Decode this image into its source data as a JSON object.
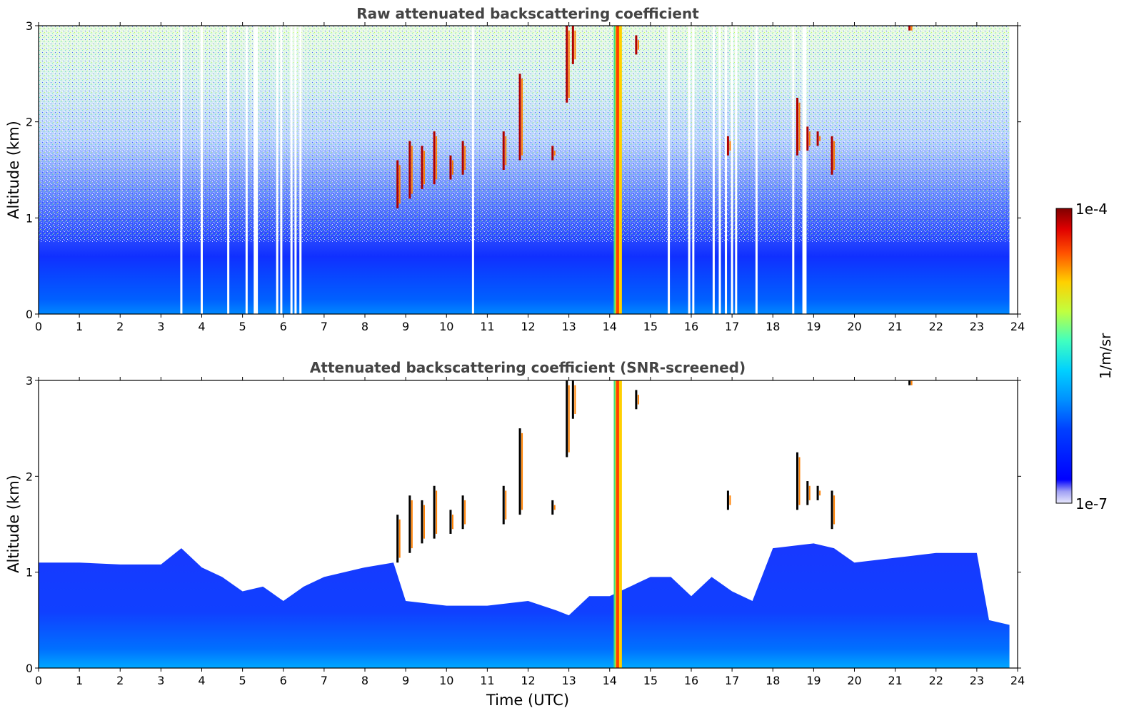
{
  "chart_data": [
    {
      "type": "heatmap",
      "title": "Raw attenuated backscattering coefficient",
      "xlabel": "",
      "ylabel": "Altitude (km)",
      "xlim": [
        0,
        24
      ],
      "ylim": [
        0,
        3
      ],
      "xticks": [
        "0",
        "1",
        "2",
        "3",
        "4",
        "5",
        "6",
        "7",
        "8",
        "9",
        "10",
        "11",
        "12",
        "13",
        "14",
        "15",
        "16",
        "17",
        "18",
        "19",
        "20",
        "21",
        "22",
        "23",
        "24"
      ],
      "yticks": [
        "0",
        "1",
        "2",
        "3"
      ],
      "features": {
        "clear_gaps_utc": [
          3.5,
          4.0,
          4.65,
          5.1,
          5.3,
          5.35,
          5.85,
          5.95,
          6.2,
          6.3,
          6.42,
          10.65,
          15.45,
          15.95,
          16.05,
          16.55,
          16.7,
          16.85,
          17.0,
          17.1,
          17.6,
          18.5,
          18.75,
          18.8
        ],
        "precip_column_utc": [
          14.1,
          14.3
        ],
        "strong_echo_streaks": [
          {
            "t": 8.8,
            "z": [
              1.1,
              1.6
            ]
          },
          {
            "t": 9.1,
            "z": [
              1.2,
              1.8
            ]
          },
          {
            "t": 9.4,
            "z": [
              1.3,
              1.75
            ]
          },
          {
            "t": 9.7,
            "z": [
              1.35,
              1.9
            ]
          },
          {
            "t": 10.1,
            "z": [
              1.4,
              1.65
            ]
          },
          {
            "t": 10.4,
            "z": [
              1.45,
              1.8
            ]
          },
          {
            "t": 11.4,
            "z": [
              1.5,
              1.9
            ]
          },
          {
            "t": 11.8,
            "z": [
              1.6,
              2.5
            ]
          },
          {
            "t": 12.6,
            "z": [
              1.6,
              1.75
            ]
          },
          {
            "t": 12.95,
            "z": [
              2.2,
              3.0
            ]
          },
          {
            "t": 13.1,
            "z": [
              2.6,
              3.0
            ]
          },
          {
            "t": 14.65,
            "z": [
              2.7,
              2.9
            ]
          },
          {
            "t": 16.9,
            "z": [
              1.65,
              1.85
            ]
          },
          {
            "t": 18.6,
            "z": [
              1.65,
              2.25
            ]
          },
          {
            "t": 18.85,
            "z": [
              1.7,
              1.95
            ]
          },
          {
            "t": 19.1,
            "z": [
              1.75,
              1.9
            ]
          },
          {
            "t": 19.45,
            "z": [
              1.45,
              1.85
            ]
          },
          {
            "t": 21.35,
            "z": [
              2.95,
              3.0
            ]
          }
        ]
      }
    },
    {
      "type": "heatmap",
      "title": "Attenuated backscattering coefficient (SNR-screened)",
      "xlabel": "Time (UTC)",
      "ylabel": "Altitude (km)",
      "xlim": [
        0,
        24
      ],
      "ylim": [
        0,
        3
      ],
      "xticks": [
        "0",
        "1",
        "2",
        "3",
        "4",
        "5",
        "6",
        "7",
        "8",
        "9",
        "10",
        "11",
        "12",
        "13",
        "14",
        "15",
        "16",
        "17",
        "18",
        "19",
        "20",
        "21",
        "22",
        "23",
        "24"
      ],
      "yticks": [
        "0",
        "1",
        "2",
        "3"
      ],
      "features": {
        "boundary_layer_top_km": [
          [
            0,
            1.1
          ],
          [
            1,
            1.1
          ],
          [
            2,
            1.08
          ],
          [
            3,
            1.08
          ],
          [
            3.5,
            1.25
          ],
          [
            4,
            1.05
          ],
          [
            4.5,
            0.95
          ],
          [
            5,
            0.8
          ],
          [
            5.5,
            0.85
          ],
          [
            6,
            0.7
          ],
          [
            6.5,
            0.85
          ],
          [
            7,
            0.95
          ],
          [
            8,
            1.05
          ],
          [
            8.7,
            1.1
          ],
          [
            9,
            0.7
          ],
          [
            10,
            0.65
          ],
          [
            11,
            0.65
          ],
          [
            12,
            0.7
          ],
          [
            12.7,
            0.6
          ],
          [
            13,
            0.55
          ],
          [
            13.5,
            0.75
          ],
          [
            14,
            0.75
          ],
          [
            14.5,
            0.85
          ],
          [
            15,
            0.95
          ],
          [
            15.5,
            0.95
          ],
          [
            16,
            0.75
          ],
          [
            16.5,
            0.95
          ],
          [
            17,
            0.8
          ],
          [
            17.5,
            0.7
          ],
          [
            18,
            1.25
          ],
          [
            19,
            1.3
          ],
          [
            19.5,
            1.25
          ],
          [
            20,
            1.1
          ],
          [
            21,
            1.15
          ],
          [
            22,
            1.2
          ],
          [
            23,
            1.2
          ],
          [
            23.3,
            0.5
          ],
          [
            23.8,
            0.45
          ]
        ],
        "precip_column_utc": [
          14.1,
          14.3
        ]
      }
    }
  ],
  "colorbar": {
    "label": "1/m/sr",
    "max_label": "1e-4",
    "min_label": "1e-7",
    "scale": "log",
    "colormap": "jet",
    "colors": [
      "#e8e8fc",
      "#c8c8f8",
      "#a0a0f4",
      "#0000ff",
      "#0060ff",
      "#00c0ff",
      "#40ffc0",
      "#c0ff40",
      "#ffc000",
      "#ff4000",
      "#800000"
    ]
  }
}
